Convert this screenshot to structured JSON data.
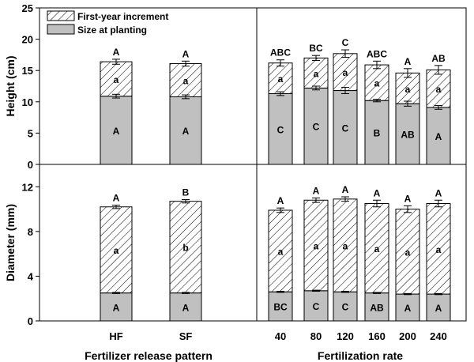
{
  "legend": {
    "increment_label": "First-year increment",
    "planting_label": "Size at planting"
  },
  "colors": {
    "planting_fill": "#c0c0c0",
    "increment_fill": "#ffffff",
    "hatch": "#000000",
    "axis": "#000000"
  },
  "xlabel_left": "Fertilizer release pattern",
  "xlabel_right": "Fertilization rate",
  "chart_data": [
    {
      "type": "bar",
      "panel": "top-left",
      "stacked": true,
      "ylabel": "Height  (cm)",
      "ylim": [
        0,
        25
      ],
      "yticks": [
        "0",
        "5",
        "10",
        "15",
        "20",
        "25"
      ],
      "categories": [
        "HF",
        "SF"
      ],
      "series": [
        {
          "name": "Size at planting",
          "values": [
            10.9,
            10.8
          ],
          "error": [
            0.3,
            0.3
          ],
          "letters": [
            "A",
            "A"
          ]
        },
        {
          "name": "First-year increment",
          "values": [
            5.5,
            5.3
          ],
          "error": [
            0.4,
            0.4
          ],
          "letters": [
            "a",
            "a"
          ]
        }
      ],
      "total_letters": [
        "A",
        "A"
      ],
      "legend_position": "top-left"
    },
    {
      "type": "bar",
      "panel": "top-right",
      "stacked": true,
      "ylabel": "",
      "ylim": [
        0,
        25
      ],
      "categories": [
        "40",
        "80",
        "120",
        "160",
        "200",
        "240"
      ],
      "series": [
        {
          "name": "Size at planting",
          "values": [
            11.3,
            12.2,
            11.8,
            10.2,
            9.7,
            9.1
          ],
          "error": [
            0.3,
            0.3,
            0.5,
            0.2,
            0.4,
            0.3
          ],
          "letters": [
            "C",
            "C",
            "C",
            "B",
            "AB",
            "A"
          ]
        },
        {
          "name": "First-year increment",
          "values": [
            4.9,
            4.8,
            5.9,
            5.7,
            4.9,
            6.0
          ],
          "error": [
            0.5,
            0.4,
            0.6,
            0.6,
            0.7,
            0.7
          ],
          "letters": [
            "a",
            "a",
            "a",
            "a",
            "a",
            "a"
          ]
        }
      ],
      "total_letters": [
        "ABC",
        "BC",
        "C",
        "ABC",
        "A",
        "AB"
      ]
    },
    {
      "type": "bar",
      "panel": "bottom-left",
      "stacked": true,
      "ylabel": "Diameter (mm)",
      "ylim": [
        0,
        14
      ],
      "yticks": [
        "0",
        "4",
        "8",
        "12"
      ],
      "categories": [
        "HF",
        "SF"
      ],
      "series": [
        {
          "name": "Size at planting",
          "values": [
            2.5,
            2.5
          ],
          "error": [
            0.05,
            0.05
          ],
          "letters": [
            "A",
            "A"
          ]
        },
        {
          "name": "First-year increment",
          "values": [
            7.7,
            8.2
          ],
          "error": [
            0.15,
            0.15
          ],
          "letters": [
            "a",
            "b"
          ]
        }
      ],
      "total_letters": [
        "A",
        "B"
      ]
    },
    {
      "type": "bar",
      "panel": "bottom-right",
      "stacked": true,
      "ylabel": "",
      "ylim": [
        0,
        14
      ],
      "categories": [
        "40",
        "80",
        "120",
        "160",
        "200",
        "240"
      ],
      "series": [
        {
          "name": "Size at planting",
          "values": [
            2.6,
            2.7,
            2.6,
            2.5,
            2.4,
            2.4
          ],
          "error": [
            0.05,
            0.05,
            0.05,
            0.05,
            0.05,
            0.05
          ],
          "letters": [
            "BC",
            "C",
            "C",
            "AB",
            "A",
            "A"
          ]
        },
        {
          "name": "First-year increment",
          "values": [
            7.3,
            8.1,
            8.3,
            8.0,
            7.6,
            8.1
          ],
          "error": [
            0.2,
            0.2,
            0.2,
            0.3,
            0.3,
            0.3
          ],
          "letters": [
            "a",
            "a",
            "a",
            "a",
            "a",
            "a"
          ]
        }
      ],
      "total_letters": [
        "A",
        "A",
        "A",
        "A",
        "A",
        "A"
      ]
    }
  ]
}
